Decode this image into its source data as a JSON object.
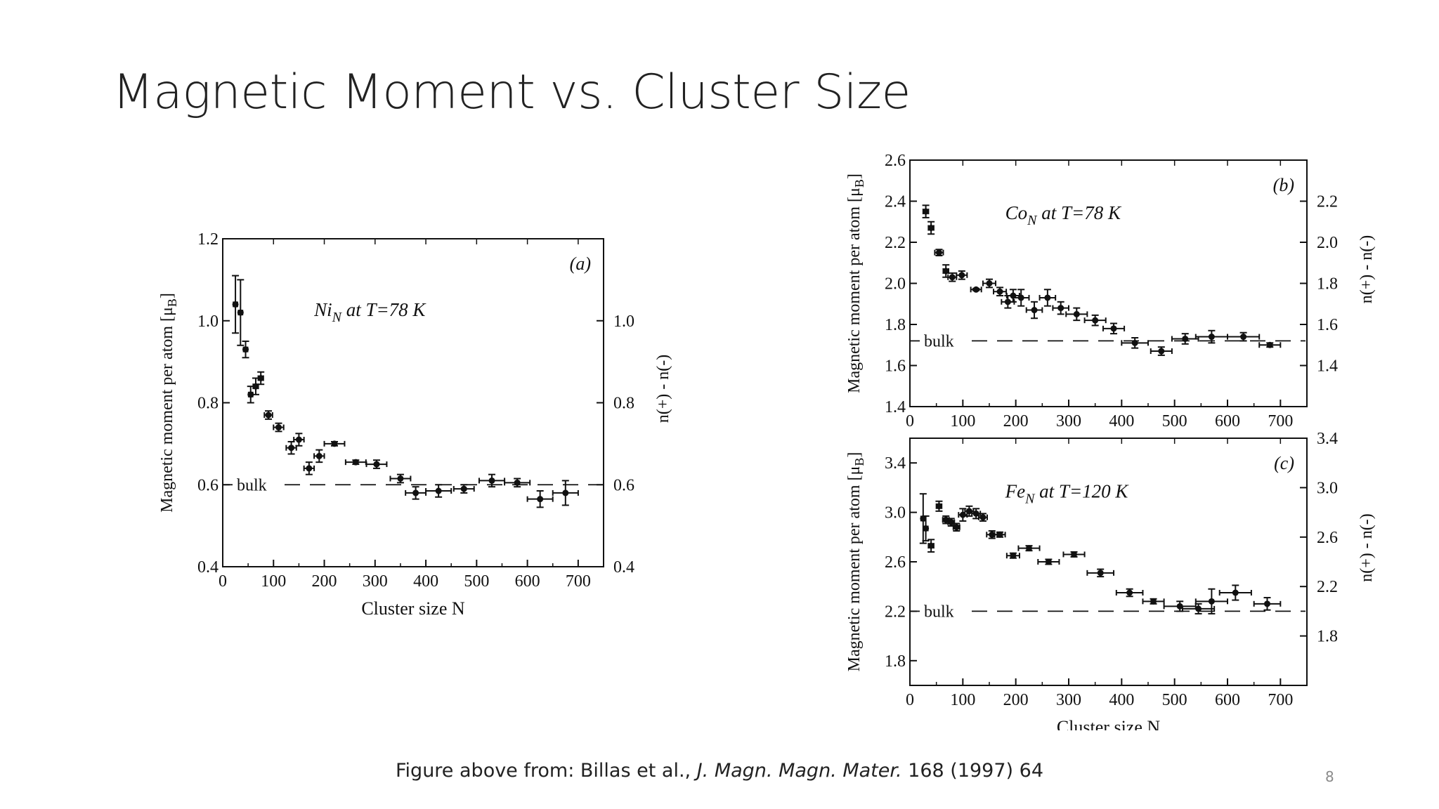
{
  "slide": {
    "title": "Magnetic Moment vs. Cluster Size",
    "caption_prefix": "Figure above from: Billas et al., ",
    "caption_journal": "J. Magn. Magn. Mater.",
    "caption_suffix": " 168 (1997) 64",
    "page_number": "8"
  },
  "chart_data": [
    {
      "id": "a",
      "type": "scatter",
      "panel_label": "(a)",
      "annotation_main": "Ni",
      "annotation_sub": "N",
      "annotation_rest": " at T=78 K",
      "xlabel": "Cluster size N",
      "ylabel": "Magnetic moment per atom [μ",
      "ylabel_sub": "B",
      "ylabel_end": "]",
      "y2label": "n(+) - n(-)",
      "xlim": [
        0,
        750
      ],
      "ylim": [
        0.4,
        1.2
      ],
      "xticks": [
        0,
        100,
        200,
        300,
        400,
        500,
        600,
        700
      ],
      "yticks": [
        0.4,
        0.6,
        0.8,
        1.0,
        1.2
      ],
      "yticklabels": [
        "0.4",
        "0.6",
        "0.8",
        "1.0",
        "1.2"
      ],
      "y2lim": [
        0.4,
        1.2
      ],
      "y2ticks": [
        0.4,
        0.6,
        0.8,
        1.0
      ],
      "y2ticklabels": [
        "0.4",
        "0.6",
        "0.8",
        "1.0"
      ],
      "bulk_label": "bulk",
      "bulk_value": 0.6,
      "points": [
        {
          "x": 25,
          "y": 1.04,
          "ey": 0.07,
          "ex": 4
        },
        {
          "x": 35,
          "y": 1.02,
          "ey": 0.08,
          "ex": 4
        },
        {
          "x": 45,
          "y": 0.93,
          "ey": 0.02,
          "ex": 4
        },
        {
          "x": 55,
          "y": 0.82,
          "ey": 0.02,
          "ex": 4
        },
        {
          "x": 65,
          "y": 0.84,
          "ey": 0.02,
          "ex": 5
        },
        {
          "x": 75,
          "y": 0.86,
          "ey": 0.015,
          "ex": 5
        },
        {
          "x": 90,
          "y": 0.77,
          "ey": 0.01,
          "ex": 8
        },
        {
          "x": 110,
          "y": 0.74,
          "ey": 0.01,
          "ex": 10
        },
        {
          "x": 135,
          "y": 0.69,
          "ey": 0.015,
          "ex": 10
        },
        {
          "x": 150,
          "y": 0.71,
          "ey": 0.015,
          "ex": 10
        },
        {
          "x": 170,
          "y": 0.64,
          "ey": 0.015,
          "ex": 10
        },
        {
          "x": 190,
          "y": 0.67,
          "ey": 0.015,
          "ex": 10
        },
        {
          "x": 220,
          "y": 0.7,
          "ey": 0.005,
          "ex": 20
        },
        {
          "x": 262,
          "y": 0.655,
          "ey": 0.005,
          "ex": 20
        },
        {
          "x": 303,
          "y": 0.65,
          "ey": 0.01,
          "ex": 20
        },
        {
          "x": 350,
          "y": 0.615,
          "ey": 0.01,
          "ex": 20
        },
        {
          "x": 380,
          "y": 0.58,
          "ey": 0.015,
          "ex": 20
        },
        {
          "x": 425,
          "y": 0.585,
          "ey": 0.015,
          "ex": 25
        },
        {
          "x": 475,
          "y": 0.59,
          "ey": 0.01,
          "ex": 20
        },
        {
          "x": 530,
          "y": 0.61,
          "ey": 0.015,
          "ex": 25
        },
        {
          "x": 580,
          "y": 0.605,
          "ey": 0.01,
          "ex": 25
        },
        {
          "x": 625,
          "y": 0.565,
          "ey": 0.02,
          "ex": 25
        },
        {
          "x": 675,
          "y": 0.58,
          "ey": 0.03,
          "ex": 25
        }
      ]
    },
    {
      "id": "b",
      "type": "scatter",
      "panel_label": "(b)",
      "annotation_main": "Co",
      "annotation_sub": "N",
      "annotation_rest": " at T=78 K",
      "xlabel": "",
      "ylabel": "Magnetic moment per atom [μ",
      "ylabel_sub": "B",
      "ylabel_end": "]",
      "y2label": "n(+) - n(-)",
      "xlim": [
        0,
        750
      ],
      "ylim": [
        1.4,
        2.6
      ],
      "xticks": [
        0,
        100,
        200,
        300,
        400,
        500,
        600,
        700
      ],
      "yticks": [
        1.4,
        1.6,
        1.8,
        2.0,
        2.2,
        2.4,
        2.6
      ],
      "yticklabels": [
        "1.4",
        "1.6",
        "1.8",
        "2.0",
        "2.2",
        "2.4",
        "2.6"
      ],
      "y2lim": [
        1.2,
        2.4
      ],
      "y2ticks": [
        1.4,
        1.6,
        1.8,
        2.0,
        2.2
      ],
      "y2ticklabels": [
        "1.4",
        "1.6",
        "1.8",
        "2.0",
        "2.2"
      ],
      "bulk_label": "bulk",
      "bulk_value": 1.72,
      "points": [
        {
          "x": 30,
          "y": 2.35,
          "ey": 0.03,
          "ex": 5
        },
        {
          "x": 40,
          "y": 2.27,
          "ey": 0.03,
          "ex": 5
        },
        {
          "x": 55,
          "y": 2.15,
          "ey": 0.015,
          "ex": 8
        },
        {
          "x": 68,
          "y": 2.06,
          "ey": 0.03,
          "ex": 5
        },
        {
          "x": 80,
          "y": 2.03,
          "ey": 0.02,
          "ex": 8
        },
        {
          "x": 98,
          "y": 2.04,
          "ey": 0.02,
          "ex": 10
        },
        {
          "x": 125,
          "y": 1.97,
          "ey": 0.005,
          "ex": 10
        },
        {
          "x": 150,
          "y": 2.0,
          "ey": 0.02,
          "ex": 12
        },
        {
          "x": 170,
          "y": 1.96,
          "ey": 0.02,
          "ex": 12
        },
        {
          "x": 185,
          "y": 1.91,
          "ey": 0.03,
          "ex": 12
        },
        {
          "x": 195,
          "y": 1.94,
          "ey": 0.03,
          "ex": 12
        },
        {
          "x": 210,
          "y": 1.93,
          "ey": 0.04,
          "ex": 15
        },
        {
          "x": 235,
          "y": 1.87,
          "ey": 0.04,
          "ex": 15
        },
        {
          "x": 260,
          "y": 1.93,
          "ey": 0.04,
          "ex": 15
        },
        {
          "x": 285,
          "y": 1.88,
          "ey": 0.03,
          "ex": 15
        },
        {
          "x": 315,
          "y": 1.85,
          "ey": 0.03,
          "ex": 20
        },
        {
          "x": 350,
          "y": 1.82,
          "ey": 0.025,
          "ex": 20
        },
        {
          "x": 385,
          "y": 1.78,
          "ey": 0.025,
          "ex": 20
        },
        {
          "x": 425,
          "y": 1.71,
          "ey": 0.025,
          "ex": 25
        },
        {
          "x": 475,
          "y": 1.67,
          "ey": 0.02,
          "ex": 20
        },
        {
          "x": 520,
          "y": 1.73,
          "ey": 0.025,
          "ex": 25
        },
        {
          "x": 570,
          "y": 1.74,
          "ey": 0.03,
          "ex": 30
        },
        {
          "x": 630,
          "y": 1.74,
          "ey": 0.02,
          "ex": 30
        },
        {
          "x": 680,
          "y": 1.7,
          "ey": 0.01,
          "ex": 20
        }
      ]
    },
    {
      "id": "c",
      "type": "scatter",
      "panel_label": "(c)",
      "annotation_main": "Fe",
      "annotation_sub": "N",
      "annotation_rest": " at T=120 K",
      "xlabel": "Cluster size N",
      "ylabel": "Magnetic moment per atom [μ",
      "ylabel_sub": "B",
      "ylabel_end": "]",
      "y2label": "n(+) - n(-)",
      "xlim": [
        0,
        750
      ],
      "ylim": [
        1.6,
        3.6
      ],
      "xticks": [
        0,
        100,
        200,
        300,
        400,
        500,
        600,
        700
      ],
      "yticks": [
        1.8,
        2.2,
        2.6,
        3.0,
        3.4
      ],
      "yticklabels": [
        "1.8",
        "2.2",
        "2.6",
        "3.0",
        "3.4"
      ],
      "y2lim": [
        1.4,
        3.4
      ],
      "y2ticks": [
        1.8,
        2.2,
        2.6,
        3.0,
        3.4
      ],
      "y2ticklabels": [
        "1.8",
        "2.2",
        "2.6",
        "3.0",
        "3.4"
      ],
      "bulk_label": "bulk",
      "bulk_value": 2.2,
      "points": [
        {
          "x": 25,
          "y": 2.95,
          "ey": 0.2,
          "ex": 4
        },
        {
          "x": 30,
          "y": 2.87,
          "ey": 0.1,
          "ex": 4
        },
        {
          "x": 40,
          "y": 2.73,
          "ey": 0.05,
          "ex": 5
        },
        {
          "x": 55,
          "y": 3.05,
          "ey": 0.04,
          "ex": 5
        },
        {
          "x": 68,
          "y": 2.94,
          "ey": 0.03,
          "ex": 6
        },
        {
          "x": 78,
          "y": 2.92,
          "ey": 0.03,
          "ex": 6
        },
        {
          "x": 88,
          "y": 2.88,
          "ey": 0.03,
          "ex": 6
        },
        {
          "x": 100,
          "y": 2.98,
          "ey": 0.05,
          "ex": 8
        },
        {
          "x": 112,
          "y": 3.01,
          "ey": 0.04,
          "ex": 8
        },
        {
          "x": 125,
          "y": 2.99,
          "ey": 0.04,
          "ex": 8
        },
        {
          "x": 138,
          "y": 2.96,
          "ey": 0.03,
          "ex": 8
        },
        {
          "x": 155,
          "y": 2.82,
          "ey": 0.03,
          "ex": 10
        },
        {
          "x": 170,
          "y": 2.82,
          "ey": 0.02,
          "ex": 10
        },
        {
          "x": 195,
          "y": 2.65,
          "ey": 0.02,
          "ex": 12
        },
        {
          "x": 225,
          "y": 2.71,
          "ey": 0.02,
          "ex": 20
        },
        {
          "x": 262,
          "y": 2.6,
          "ey": 0.02,
          "ex": 20
        },
        {
          "x": 310,
          "y": 2.66,
          "ey": 0.02,
          "ex": 20
        },
        {
          "x": 360,
          "y": 2.51,
          "ey": 0.03,
          "ex": 25
        },
        {
          "x": 415,
          "y": 2.35,
          "ey": 0.03,
          "ex": 25
        },
        {
          "x": 460,
          "y": 2.28,
          "ey": 0.02,
          "ex": 20
        },
        {
          "x": 510,
          "y": 2.24,
          "ey": 0.04,
          "ex": 30
        },
        {
          "x": 545,
          "y": 2.22,
          "ey": 0.04,
          "ex": 30
        },
        {
          "x": 570,
          "y": 2.28,
          "ey": 0.1,
          "ex": 30
        },
        {
          "x": 615,
          "y": 2.35,
          "ey": 0.06,
          "ex": 30
        },
        {
          "x": 675,
          "y": 2.26,
          "ey": 0.05,
          "ex": 25
        }
      ]
    }
  ]
}
